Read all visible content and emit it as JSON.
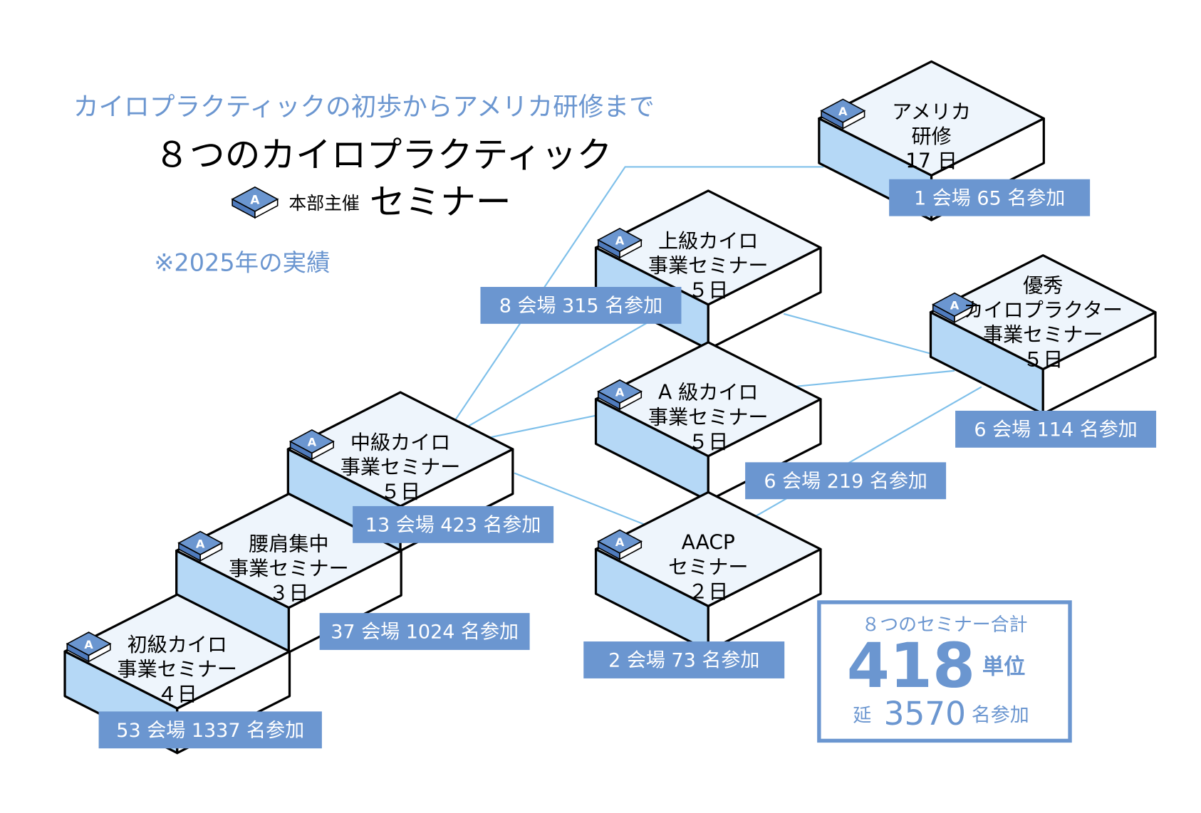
{
  "header": {
    "subtitle": "カイロプラクティックの初歩からアメリカ研修まで",
    "title": "８つのカイロプラクティック",
    "badge_letter": "A",
    "host_label": "本部主催",
    "seminar_label": "セミナー",
    "note": "※2025年の実績"
  },
  "colors": {
    "accent": "#6b96d0",
    "block_top": "#eef5fc",
    "block_side": "#b5d8f6",
    "connector": "#7fc0ea"
  },
  "seminars": [
    {
      "id": "shokyu",
      "lines": [
        "初級カイロ",
        "事業セミナー",
        "４日"
      ],
      "stats": "53 会場 1337 名参加"
    },
    {
      "id": "yoken",
      "lines": [
        "腰肩集中",
        "事業セミナー",
        "３日"
      ],
      "stats": "37 会場 1024 名参加"
    },
    {
      "id": "chukyu",
      "lines": [
        "中級カイロ",
        "事業セミナー",
        "５日"
      ],
      "stats": "13 会場 423 名参加"
    },
    {
      "id": "jokyu",
      "lines": [
        "上級カイロ",
        "事業セミナー",
        "５日"
      ],
      "stats": "8 会場 315 名参加"
    },
    {
      "id": "akyu",
      "lines": [
        "A 級カイロ",
        "事業セミナー",
        "５日"
      ],
      "stats": "6 会場 219 名参加"
    },
    {
      "id": "aacp",
      "lines": [
        "AACP",
        "セミナー",
        "２日"
      ],
      "stats": "2 会場 73 名参加"
    },
    {
      "id": "yushu",
      "lines": [
        "優秀",
        "カイロプラクター",
        "事業セミナー",
        "５日"
      ],
      "stats": "6 会場 114 名参加"
    },
    {
      "id": "america",
      "lines": [
        "アメリカ",
        "研修",
        "17 日"
      ],
      "stats": "1 会場 65 名参加"
    }
  ],
  "total": {
    "heading": "８つのセミナー合計",
    "units_value": "418",
    "units_label": "単位",
    "prefix": "延",
    "participants_value": "3570",
    "participants_label": "名参加"
  }
}
